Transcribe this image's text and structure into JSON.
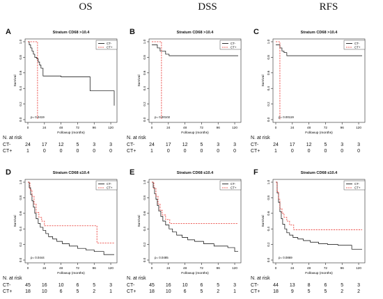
{
  "columns": [
    "OS",
    "DSS",
    "RFS"
  ],
  "risk_header": "N. at risk",
  "chart_data": [
    {
      "type": "line",
      "panel": "A",
      "title": "Stratum CD68 >10.4",
      "xlabel": "Followup (months)",
      "ylabel": "Survival",
      "xlim": [
        0,
        125
      ],
      "ylim": [
        0,
        1
      ],
      "xticks": [
        0,
        24,
        48,
        72,
        96,
        120
      ],
      "yticks": [
        0,
        0.2,
        0.4,
        0.6,
        0.8,
        1.0
      ],
      "legend": [
        "CT-",
        "CT+"
      ],
      "legend_position": "top-right",
      "pvalue": "p= 0.0419",
      "series": [
        {
          "name": "CT-",
          "style": "solid",
          "color": "#000000",
          "x": [
            0,
            2,
            4,
            6,
            8,
            10,
            13,
            15,
            17,
            19,
            22,
            25,
            48,
            60,
            90,
            125
          ],
          "y": [
            1.0,
            0.96,
            0.92,
            0.88,
            0.84,
            0.8,
            0.78,
            0.74,
            0.7,
            0.66,
            0.56,
            0.56,
            0.55,
            0.55,
            0.37,
            0.18
          ]
        },
        {
          "name": "CT+",
          "style": "dashed",
          "color": "#e8302a",
          "x": [
            0,
            14,
            14
          ],
          "y": [
            1.0,
            1.0,
            0.0
          ]
        }
      ],
      "risk": {
        "x": [
          0,
          24,
          48,
          72,
          96,
          120
        ],
        "CT-": [
          24,
          17,
          12,
          5,
          3,
          3
        ],
        "CT+": [
          1,
          0,
          0,
          0,
          0,
          0
        ]
      }
    },
    {
      "type": "line",
      "panel": "B",
      "title": "Stratum CD68 >10.4",
      "xlabel": "Followup (months)",
      "ylabel": "Survival",
      "xlim": [
        0,
        125
      ],
      "ylim": [
        0,
        1
      ],
      "xticks": [
        0,
        24,
        48,
        72,
        96,
        120
      ],
      "yticks": [
        0,
        0.2,
        0.4,
        0.6,
        0.8,
        1.0
      ],
      "legend": [
        "CT-",
        "CT+"
      ],
      "legend_position": "top-right",
      "pvalue": "p= 0.00102",
      "series": [
        {
          "name": "CT-",
          "style": "solid",
          "color": "#000000",
          "x": [
            0,
            5,
            8,
            10,
            12,
            15,
            20,
            25,
            125
          ],
          "y": [
            0.96,
            0.96,
            0.92,
            0.92,
            0.88,
            0.88,
            0.84,
            0.82,
            0.82
          ]
        },
        {
          "name": "CT+",
          "style": "dashed",
          "color": "#e8302a",
          "x": [
            0,
            14,
            14
          ],
          "y": [
            1.0,
            1.0,
            0.0
          ]
        }
      ],
      "risk": {
        "x": [
          0,
          24,
          48,
          72,
          96,
          120
        ],
        "CT-": [
          24,
          17,
          12,
          5,
          3,
          3
        ],
        "CT+": [
          1,
          0,
          0,
          0,
          0,
          0
        ]
      }
    },
    {
      "type": "line",
      "panel": "C",
      "title": "Stratum CD68 >10.4",
      "xlabel": "Followup (months)",
      "ylabel": "Survival",
      "xlim": [
        0,
        125
      ],
      "ylim": [
        0,
        1
      ],
      "xticks": [
        0,
        24,
        48,
        72,
        96,
        120
      ],
      "yticks": [
        0,
        0.2,
        0.4,
        0.6,
        0.8,
        1.0
      ],
      "legend": [
        "CT-",
        "CT+"
      ],
      "legend_position": "top-right",
      "pvalue": "p= 0.00119",
      "series": [
        {
          "name": "CT-",
          "style": "solid",
          "color": "#000000",
          "x": [
            0,
            3,
            6,
            9,
            12,
            16,
            125
          ],
          "y": [
            0.96,
            0.96,
            0.92,
            0.88,
            0.86,
            0.82,
            0.82
          ]
        },
        {
          "name": "CT+",
          "style": "dashed",
          "color": "#e8302a",
          "x": [
            0,
            6,
            6
          ],
          "y": [
            1.0,
            1.0,
            0.0
          ]
        }
      ],
      "risk": {
        "x": [
          0,
          24,
          48,
          72,
          96,
          120
        ],
        "CT-": [
          24,
          17,
          12,
          5,
          3,
          3
        ],
        "CT+": [
          1,
          0,
          0,
          0,
          0,
          0
        ]
      }
    },
    {
      "type": "line",
      "panel": "D",
      "title": "Stratum CD68 ≤10.4",
      "xlabel": "Followup (months)",
      "ylabel": "Survival",
      "xlim": [
        0,
        125
      ],
      "ylim": [
        0,
        1
      ],
      "xticks": [
        0,
        24,
        48,
        72,
        96,
        120
      ],
      "yticks": [
        0,
        0.2,
        0.4,
        0.6,
        0.8,
        1.0
      ],
      "legend": [
        "CT-",
        "CT+"
      ],
      "legend_position": "top-right",
      "pvalue": "p= 0.0444",
      "series": [
        {
          "name": "CT-",
          "style": "solid",
          "color": "#000000",
          "x": [
            0,
            2,
            4,
            6,
            8,
            10,
            12,
            15,
            18,
            22,
            26,
            30,
            36,
            42,
            50,
            60,
            72,
            84,
            96,
            110,
            125
          ],
          "y": [
            1.0,
            0.93,
            0.84,
            0.76,
            0.68,
            0.6,
            0.53,
            0.47,
            0.42,
            0.38,
            0.34,
            0.3,
            0.27,
            0.24,
            0.21,
            0.18,
            0.15,
            0.13,
            0.11,
            0.07,
            0.07
          ]
        },
        {
          "name": "CT+",
          "style": "dashed",
          "color": "#e8302a",
          "x": [
            0,
            3,
            6,
            9,
            12,
            16,
            20,
            24,
            90,
            100,
            125
          ],
          "y": [
            1.0,
            0.9,
            0.82,
            0.72,
            0.61,
            0.55,
            0.5,
            0.44,
            0.44,
            0.22,
            0.22
          ]
        }
      ],
      "risk": {
        "x": [
          0,
          24,
          48,
          72,
          96,
          120
        ],
        "CT-": [
          45,
          16,
          10,
          6,
          5,
          3
        ],
        "CT+": [
          18,
          10,
          6,
          5,
          2,
          1
        ]
      }
    },
    {
      "type": "line",
      "panel": "E",
      "title": "Stratum CD68 ≤10.4",
      "xlabel": "Followup (months)",
      "ylabel": "Survival",
      "xlim": [
        0,
        125
      ],
      "ylim": [
        0,
        1
      ],
      "xticks": [
        0,
        24,
        48,
        72,
        96,
        120
      ],
      "yticks": [
        0,
        0.2,
        0.4,
        0.6,
        0.8,
        1.0
      ],
      "legend": [
        "CT-",
        "CT+"
      ],
      "legend_position": "top-right",
      "pvalue": "p= 0.0485",
      "series": [
        {
          "name": "CT-",
          "style": "solid",
          "color": "#000000",
          "x": [
            0,
            2,
            4,
            6,
            8,
            10,
            13,
            16,
            20,
            25,
            30,
            36,
            44,
            52,
            62,
            75,
            90,
            110,
            120,
            125
          ],
          "y": [
            1.0,
            0.93,
            0.85,
            0.78,
            0.7,
            0.63,
            0.56,
            0.5,
            0.45,
            0.4,
            0.36,
            0.32,
            0.29,
            0.26,
            0.24,
            0.21,
            0.18,
            0.16,
            0.11,
            0.11
          ]
        },
        {
          "name": "CT+",
          "style": "dashed",
          "color": "#e8302a",
          "x": [
            0,
            3,
            6,
            9,
            12,
            15,
            20,
            26,
            125
          ],
          "y": [
            1.0,
            0.92,
            0.82,
            0.72,
            0.64,
            0.58,
            0.52,
            0.47,
            0.47
          ]
        }
      ],
      "risk": {
        "x": [
          0,
          24,
          48,
          72,
          96,
          120
        ],
        "CT-": [
          45,
          16,
          10,
          6,
          5,
          3
        ],
        "CT+": [
          18,
          10,
          6,
          5,
          2,
          1
        ]
      }
    },
    {
      "type": "line",
      "panel": "F",
      "title": "Stratum CD68 ≤10.4",
      "xlabel": "Followup (months)",
      "ylabel": "Survival",
      "xlim": [
        0,
        125
      ],
      "ylim": [
        0,
        1
      ],
      "xticks": [
        0,
        24,
        48,
        72,
        96,
        120
      ],
      "yticks": [
        0,
        0.2,
        0.4,
        0.6,
        0.8,
        1.0
      ],
      "legend": [
        "CT-",
        "CT+"
      ],
      "legend_position": "top-right",
      "pvalue": "p= 0.0869",
      "series": [
        {
          "name": "CT-",
          "style": "solid",
          "color": "#000000",
          "x": [
            0,
            2,
            4,
            6,
            8,
            10,
            13,
            16,
            20,
            25,
            32,
            40,
            50,
            62,
            75,
            90,
            110,
            125
          ],
          "y": [
            1.0,
            0.86,
            0.74,
            0.62,
            0.53,
            0.46,
            0.4,
            0.35,
            0.32,
            0.29,
            0.27,
            0.25,
            0.23,
            0.21,
            0.2,
            0.19,
            0.14,
            0.14
          ]
        },
        {
          "name": "CT+",
          "style": "dashed",
          "color": "#e8302a",
          "x": [
            0,
            2,
            4,
            6,
            9,
            12,
            16,
            20,
            26,
            125
          ],
          "y": [
            1.0,
            0.88,
            0.78,
            0.66,
            0.6,
            0.55,
            0.5,
            0.45,
            0.39,
            0.39
          ]
        }
      ],
      "risk": {
        "x": [
          0,
          24,
          48,
          72,
          96,
          120
        ],
        "CT-": [
          44,
          13,
          8,
          6,
          5,
          3
        ],
        "CT+": [
          18,
          9,
          5,
          5,
          2,
          2
        ]
      }
    }
  ]
}
